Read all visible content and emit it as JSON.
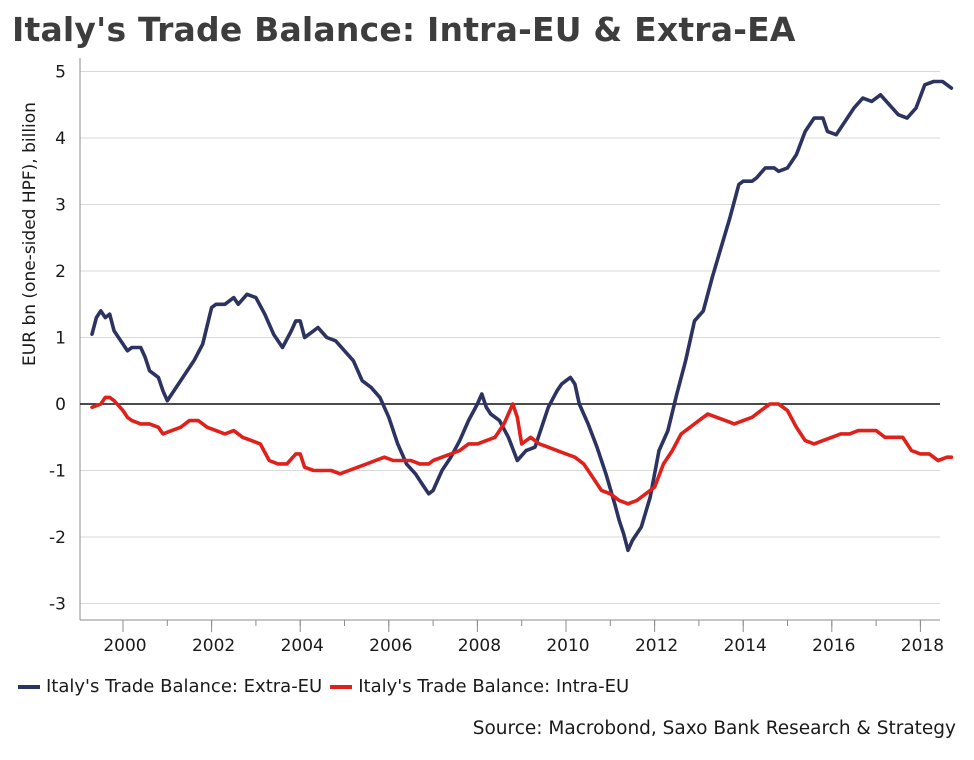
{
  "chart_data": {
    "type": "line",
    "title": "Italy's Trade Balance: Intra-EU & Extra-EA",
    "ylabel": "EUR bn (one-sided HPF), billion",
    "xlabel": "",
    "xlim": [
      1999.0,
      2018.7
    ],
    "ylim": [
      -3.2,
      5.2
    ],
    "x_ticks": [
      2000,
      2002,
      2004,
      2006,
      2008,
      2010,
      2012,
      2014,
      2016,
      2018
    ],
    "y_ticks": [
      5,
      4,
      3,
      2,
      1,
      0,
      -1,
      -2,
      -3
    ],
    "grid": "horizontal",
    "zero_line": true,
    "legend_position": "bottom",
    "series": [
      {
        "name": "Italy's Trade Balance: Extra-EU",
        "color": "#2d3361",
        "points": [
          [
            1999.3,
            1.05
          ],
          [
            1999.4,
            1.3
          ],
          [
            1999.5,
            1.4
          ],
          [
            1999.6,
            1.3
          ],
          [
            1999.7,
            1.35
          ],
          [
            1999.8,
            1.1
          ],
          [
            2000.0,
            0.9
          ],
          [
            2000.1,
            0.8
          ],
          [
            2000.2,
            0.85
          ],
          [
            2000.4,
            0.85
          ],
          [
            2000.5,
            0.7
          ],
          [
            2000.6,
            0.5
          ],
          [
            2000.8,
            0.4
          ],
          [
            2000.9,
            0.2
          ],
          [
            2001.0,
            0.05
          ],
          [
            2001.2,
            0.25
          ],
          [
            2001.4,
            0.45
          ],
          [
            2001.6,
            0.65
          ],
          [
            2001.8,
            0.9
          ],
          [
            2002.0,
            1.45
          ],
          [
            2002.1,
            1.5
          ],
          [
            2002.3,
            1.5
          ],
          [
            2002.5,
            1.6
          ],
          [
            2002.6,
            1.5
          ],
          [
            2002.8,
            1.65
          ],
          [
            2003.0,
            1.6
          ],
          [
            2003.2,
            1.35
          ],
          [
            2003.4,
            1.05
          ],
          [
            2003.6,
            0.85
          ],
          [
            2003.8,
            1.1
          ],
          [
            2003.9,
            1.25
          ],
          [
            2004.0,
            1.25
          ],
          [
            2004.1,
            1.0
          ],
          [
            2004.3,
            1.1
          ],
          [
            2004.4,
            1.15
          ],
          [
            2004.6,
            1.0
          ],
          [
            2004.8,
            0.95
          ],
          [
            2005.0,
            0.8
          ],
          [
            2005.2,
            0.65
          ],
          [
            2005.4,
            0.35
          ],
          [
            2005.6,
            0.25
          ],
          [
            2005.8,
            0.1
          ],
          [
            2006.0,
            -0.2
          ],
          [
            2006.2,
            -0.6
          ],
          [
            2006.4,
            -0.9
          ],
          [
            2006.6,
            -1.05
          ],
          [
            2006.8,
            -1.25
          ],
          [
            2006.9,
            -1.35
          ],
          [
            2007.0,
            -1.3
          ],
          [
            2007.2,
            -1.0
          ],
          [
            2007.4,
            -0.8
          ],
          [
            2007.6,
            -0.55
          ],
          [
            2007.8,
            -0.25
          ],
          [
            2008.0,
            0.0
          ],
          [
            2008.1,
            0.15
          ],
          [
            2008.2,
            -0.05
          ],
          [
            2008.3,
            -0.15
          ],
          [
            2008.5,
            -0.25
          ],
          [
            2008.7,
            -0.5
          ],
          [
            2008.9,
            -0.85
          ],
          [
            2009.1,
            -0.7
          ],
          [
            2009.3,
            -0.65
          ],
          [
            2009.4,
            -0.45
          ],
          [
            2009.6,
            -0.05
          ],
          [
            2009.8,
            0.2
          ],
          [
            2009.9,
            0.3
          ],
          [
            2010.0,
            0.35
          ],
          [
            2010.1,
            0.4
          ],
          [
            2010.2,
            0.3
          ],
          [
            2010.3,
            0.0
          ],
          [
            2010.5,
            -0.3
          ],
          [
            2010.7,
            -0.65
          ],
          [
            2010.9,
            -1.05
          ],
          [
            2011.1,
            -1.5
          ],
          [
            2011.2,
            -1.75
          ],
          [
            2011.3,
            -1.95
          ],
          [
            2011.4,
            -2.2
          ],
          [
            2011.5,
            -2.05
          ],
          [
            2011.7,
            -1.85
          ],
          [
            2011.9,
            -1.4
          ],
          [
            2012.1,
            -0.7
          ],
          [
            2012.3,
            -0.4
          ],
          [
            2012.5,
            0.15
          ],
          [
            2012.7,
            0.65
          ],
          [
            2012.9,
            1.25
          ],
          [
            2013.1,
            1.4
          ],
          [
            2013.3,
            1.9
          ],
          [
            2013.5,
            2.35
          ],
          [
            2013.7,
            2.8
          ],
          [
            2013.9,
            3.3
          ],
          [
            2014.0,
            3.35
          ],
          [
            2014.2,
            3.35
          ],
          [
            2014.3,
            3.4
          ],
          [
            2014.5,
            3.55
          ],
          [
            2014.7,
            3.55
          ],
          [
            2014.8,
            3.5
          ],
          [
            2015.0,
            3.55
          ],
          [
            2015.2,
            3.75
          ],
          [
            2015.4,
            4.1
          ],
          [
            2015.6,
            4.3
          ],
          [
            2015.8,
            4.3
          ],
          [
            2015.9,
            4.1
          ],
          [
            2016.1,
            4.05
          ],
          [
            2016.3,
            4.25
          ],
          [
            2016.5,
            4.45
          ],
          [
            2016.7,
            4.6
          ],
          [
            2016.9,
            4.55
          ],
          [
            2017.1,
            4.65
          ],
          [
            2017.3,
            4.5
          ],
          [
            2017.5,
            4.35
          ],
          [
            2017.7,
            4.3
          ],
          [
            2017.9,
            4.45
          ],
          [
            2018.1,
            4.8
          ],
          [
            2018.3,
            4.85
          ],
          [
            2018.5,
            4.85
          ],
          [
            2018.7,
            4.75
          ]
        ]
      },
      {
        "name": "Italy's Trade Balance: Intra-EU",
        "color": "#e0201b",
        "points": [
          [
            1999.3,
            -0.05
          ],
          [
            1999.5,
            0.0
          ],
          [
            1999.6,
            0.1
          ],
          [
            1999.7,
            0.1
          ],
          [
            1999.8,
            0.05
          ],
          [
            2000.0,
            -0.1
          ],
          [
            2000.1,
            -0.2
          ],
          [
            2000.2,
            -0.25
          ],
          [
            2000.4,
            -0.3
          ],
          [
            2000.6,
            -0.3
          ],
          [
            2000.8,
            -0.35
          ],
          [
            2000.9,
            -0.45
          ],
          [
            2001.1,
            -0.4
          ],
          [
            2001.3,
            -0.35
          ],
          [
            2001.5,
            -0.25
          ],
          [
            2001.7,
            -0.25
          ],
          [
            2001.9,
            -0.35
          ],
          [
            2002.1,
            -0.4
          ],
          [
            2002.3,
            -0.45
          ],
          [
            2002.5,
            -0.4
          ],
          [
            2002.7,
            -0.5
          ],
          [
            2002.9,
            -0.55
          ],
          [
            2003.1,
            -0.6
          ],
          [
            2003.3,
            -0.85
          ],
          [
            2003.5,
            -0.9
          ],
          [
            2003.7,
            -0.9
          ],
          [
            2003.9,
            -0.75
          ],
          [
            2004.0,
            -0.75
          ],
          [
            2004.1,
            -0.95
          ],
          [
            2004.3,
            -1.0
          ],
          [
            2004.5,
            -1.0
          ],
          [
            2004.7,
            -1.0
          ],
          [
            2004.9,
            -1.05
          ],
          [
            2005.1,
            -1.0
          ],
          [
            2005.3,
            -0.95
          ],
          [
            2005.5,
            -0.9
          ],
          [
            2005.7,
            -0.85
          ],
          [
            2005.9,
            -0.8
          ],
          [
            2006.1,
            -0.85
          ],
          [
            2006.3,
            -0.85
          ],
          [
            2006.5,
            -0.85
          ],
          [
            2006.7,
            -0.9
          ],
          [
            2006.9,
            -0.9
          ],
          [
            2007.0,
            -0.85
          ],
          [
            2007.2,
            -0.8
          ],
          [
            2007.4,
            -0.75
          ],
          [
            2007.6,
            -0.7
          ],
          [
            2007.8,
            -0.6
          ],
          [
            2008.0,
            -0.6
          ],
          [
            2008.2,
            -0.55
          ],
          [
            2008.4,
            -0.5
          ],
          [
            2008.6,
            -0.3
          ],
          [
            2008.8,
            0.0
          ],
          [
            2008.9,
            -0.2
          ],
          [
            2009.0,
            -0.6
          ],
          [
            2009.2,
            -0.5
          ],
          [
            2009.4,
            -0.6
          ],
          [
            2009.6,
            -0.65
          ],
          [
            2009.8,
            -0.7
          ],
          [
            2010.0,
            -0.75
          ],
          [
            2010.2,
            -0.8
          ],
          [
            2010.4,
            -0.9
          ],
          [
            2010.6,
            -1.1
          ],
          [
            2010.8,
            -1.3
          ],
          [
            2011.0,
            -1.35
          ],
          [
            2011.2,
            -1.45
          ],
          [
            2011.4,
            -1.5
          ],
          [
            2011.6,
            -1.45
          ],
          [
            2011.8,
            -1.35
          ],
          [
            2012.0,
            -1.25
          ],
          [
            2012.2,
            -0.9
          ],
          [
            2012.4,
            -0.7
          ],
          [
            2012.6,
            -0.45
          ],
          [
            2012.8,
            -0.35
          ],
          [
            2013.0,
            -0.25
          ],
          [
            2013.2,
            -0.15
          ],
          [
            2013.4,
            -0.2
          ],
          [
            2013.6,
            -0.25
          ],
          [
            2013.8,
            -0.3
          ],
          [
            2014.0,
            -0.25
          ],
          [
            2014.2,
            -0.2
          ],
          [
            2014.4,
            -0.1
          ],
          [
            2014.6,
            0.0
          ],
          [
            2014.8,
            0.0
          ],
          [
            2015.0,
            -0.1
          ],
          [
            2015.2,
            -0.35
          ],
          [
            2015.4,
            -0.55
          ],
          [
            2015.6,
            -0.6
          ],
          [
            2015.8,
            -0.55
          ],
          [
            2016.0,
            -0.5
          ],
          [
            2016.2,
            -0.45
          ],
          [
            2016.4,
            -0.45
          ],
          [
            2016.6,
            -0.4
          ],
          [
            2016.8,
            -0.4
          ],
          [
            2017.0,
            -0.4
          ],
          [
            2017.2,
            -0.5
          ],
          [
            2017.4,
            -0.5
          ],
          [
            2017.6,
            -0.5
          ],
          [
            2017.8,
            -0.7
          ],
          [
            2018.0,
            -0.75
          ],
          [
            2018.2,
            -0.75
          ],
          [
            2018.4,
            -0.85
          ],
          [
            2018.6,
            -0.8
          ],
          [
            2018.7,
            -0.8
          ]
        ]
      }
    ]
  },
  "legend": {
    "extra_eu": "Italy's Trade Balance: Extra-EU",
    "intra_eu": "Italy's Trade Balance: Intra-EU"
  },
  "source": "Source: Macrobond, Saxo Bank Research & Strategy"
}
